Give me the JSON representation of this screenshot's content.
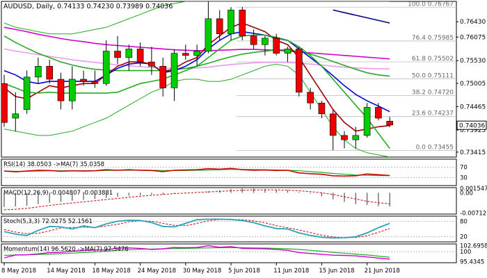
{
  "chart_data": {
    "type": "candlestick",
    "symbol": "AUDUSD",
    "timeframe": "Daily",
    "ohlc_header": {
      "open": "0.74133",
      "high": "0.74230",
      "low": "0.73989",
      "close": "0.74036"
    },
    "title": "AUDUSD, Daily, 0.74133 0.74230 0.73989 0.74036",
    "y_ticks": [
      "0.76430",
      "0.76075",
      "0.75530",
      "0.75005",
      "0.74465",
      "0.73925",
      "0.73415"
    ],
    "ylim": [
      0.733,
      0.769
    ],
    "current_price": "0.74036",
    "x_labels": [
      "8 May 2018",
      "14 May 2018",
      "18 May 2018",
      "24 May 2018",
      "30 May 2018",
      "5 Jun 2018",
      "11 Jun 2018",
      "15 Jun 2018",
      "21 Jun 2018"
    ],
    "x_label_bars": [
      0,
      4,
      8,
      12,
      16,
      20,
      24,
      28,
      32
    ],
    "candles": [
      {
        "o": 0.75,
        "h": 0.752,
        "l": 0.74,
        "c": 0.741
      },
      {
        "o": 0.742,
        "h": 0.748,
        "l": 0.739,
        "c": 0.743
      },
      {
        "o": 0.744,
        "h": 0.753,
        "l": 0.743,
        "c": 0.7515
      },
      {
        "o": 0.7515,
        "h": 0.756,
        "l": 0.75,
        "c": 0.754
      },
      {
        "o": 0.754,
        "h": 0.7555,
        "l": 0.75,
        "c": 0.751
      },
      {
        "o": 0.751,
        "h": 0.7525,
        "l": 0.744,
        "c": 0.746
      },
      {
        "o": 0.746,
        "h": 0.754,
        "l": 0.744,
        "c": 0.751
      },
      {
        "o": 0.751,
        "h": 0.753,
        "l": 0.7495,
        "c": 0.7505
      },
      {
        "o": 0.7505,
        "h": 0.753,
        "l": 0.749,
        "c": 0.75
      },
      {
        "o": 0.75,
        "h": 0.76,
        "l": 0.7495,
        "c": 0.7575
      },
      {
        "o": 0.7575,
        "h": 0.761,
        "l": 0.7545,
        "c": 0.756
      },
      {
        "o": 0.756,
        "h": 0.759,
        "l": 0.753,
        "c": 0.758
      },
      {
        "o": 0.758,
        "h": 0.7595,
        "l": 0.754,
        "c": 0.755
      },
      {
        "o": 0.755,
        "h": 0.7585,
        "l": 0.752,
        "c": 0.754
      },
      {
        "o": 0.754,
        "h": 0.756,
        "l": 0.747,
        "c": 0.749
      },
      {
        "o": 0.749,
        "h": 0.758,
        "l": 0.746,
        "c": 0.757
      },
      {
        "o": 0.757,
        "h": 0.759,
        "l": 0.7555,
        "c": 0.7565
      },
      {
        "o": 0.7565,
        "h": 0.759,
        "l": 0.754,
        "c": 0.7575
      },
      {
        "o": 0.7575,
        "h": 0.769,
        "l": 0.757,
        "c": 0.765
      },
      {
        "o": 0.765,
        "h": 0.767,
        "l": 0.76,
        "c": 0.7615
      },
      {
        "o": 0.7615,
        "h": 0.7677,
        "l": 0.76,
        "c": 0.767
      },
      {
        "o": 0.767,
        "h": 0.7677,
        "l": 0.76,
        "c": 0.761
      },
      {
        "o": 0.761,
        "h": 0.7625,
        "l": 0.758,
        "c": 0.759
      },
      {
        "o": 0.759,
        "h": 0.761,
        "l": 0.7565,
        "c": 0.7605
      },
      {
        "o": 0.7605,
        "h": 0.7615,
        "l": 0.7565,
        "c": 0.757
      },
      {
        "o": 0.757,
        "h": 0.7585,
        "l": 0.755,
        "c": 0.758
      },
      {
        "o": 0.758,
        "h": 0.7585,
        "l": 0.747,
        "c": 0.748
      },
      {
        "o": 0.748,
        "h": 0.749,
        "l": 0.744,
        "c": 0.7455
      },
      {
        "o": 0.7455,
        "h": 0.746,
        "l": 0.742,
        "c": 0.743
      },
      {
        "o": 0.743,
        "h": 0.744,
        "l": 0.7346,
        "c": 0.738
      },
      {
        "o": 0.738,
        "h": 0.739,
        "l": 0.735,
        "c": 0.737
      },
      {
        "o": 0.737,
        "h": 0.74,
        "l": 0.735,
        "c": 0.738
      },
      {
        "o": 0.738,
        "h": 0.7455,
        "l": 0.7375,
        "c": 0.7445
      },
      {
        "o": 0.7445,
        "h": 0.7455,
        "l": 0.7415,
        "c": 0.742
      },
      {
        "o": 0.7413,
        "h": 0.7423,
        "l": 0.7399,
        "c": 0.7404
      }
    ],
    "fib_levels": [
      {
        "label": "100.0 0.76767",
        "value": 0.76767
      },
      {
        "label": "76.4 0.75985",
        "value": 0.75985
      },
      {
        "label": "61.8 0.75502",
        "value": 0.75502
      },
      {
        "label": "50.0 0.75111",
        "value": 0.75111
      },
      {
        "label": "38.2 0.74720",
        "value": 0.7472
      },
      {
        "label": "23.6 0.74237",
        "value": 0.74237
      },
      {
        "label": "0.0 0.73455",
        "value": 0.73455
      }
    ],
    "overlays": [
      {
        "color": "#000080",
        "values": [
          0.767,
          0.7664,
          0.7658,
          0.7652,
          0.7646,
          0.764
        ]
      },
      {
        "color": "#cc00cc",
        "values": [
          0.763,
          0.7625,
          0.762,
          0.7614,
          0.7609,
          0.7604,
          0.76,
          0.7597,
          0.7593,
          0.759,
          0.7588,
          0.7586,
          0.7584,
          0.7582,
          0.758,
          0.7578,
          0.7577,
          0.7576,
          0.7576,
          0.7577,
          0.7578,
          0.7579,
          0.7579,
          0.7578,
          0.7577,
          0.7575,
          0.7573,
          0.7571,
          0.7569,
          0.7567,
          0.7565,
          0.7563,
          0.7561,
          0.7559,
          0.7557
        ]
      },
      {
        "color": "#ee99ee",
        "values": [
          0.758,
          0.7575,
          0.7571,
          0.7567,
          0.7563,
          0.7559,
          0.7555,
          0.7552,
          0.7549,
          0.7546,
          0.7543,
          0.7541,
          0.7539,
          0.7537,
          0.7536,
          0.7535,
          0.7535,
          0.7536,
          0.7538,
          0.7541,
          0.7544,
          0.7546,
          0.7548,
          0.7549,
          0.7549,
          0.7549,
          0.7547,
          0.7545,
          0.7543,
          0.754,
          0.7538,
          0.7536,
          0.7535,
          0.7534,
          0.7534
        ]
      },
      {
        "color": "#22aa22",
        "values": [
          0.761,
          0.7595,
          0.7582,
          0.757,
          0.756,
          0.755,
          0.7543,
          0.7537,
          0.7533,
          0.7531,
          0.753,
          0.753,
          0.753,
          0.753,
          0.753,
          0.7532,
          0.7535,
          0.754,
          0.7547,
          0.7555,
          0.7562,
          0.7568,
          0.7572,
          0.7575,
          0.7578,
          0.7578,
          0.7574,
          0.7568,
          0.756,
          0.7551,
          0.7542,
          0.7533,
          0.7525,
          0.752,
          0.7517
        ]
      },
      {
        "color": "#0000dd",
        "values": [
          0.753,
          0.752,
          0.7505,
          0.75,
          0.7505,
          0.7505,
          0.7505,
          0.7505,
          0.7505,
          0.752,
          0.7535,
          0.7545,
          0.7548,
          0.7545,
          0.7525,
          0.753,
          0.754,
          0.7555,
          0.758,
          0.76,
          0.7615,
          0.762,
          0.7616,
          0.7612,
          0.7605,
          0.76,
          0.758,
          0.756,
          0.754,
          0.7518,
          0.7495,
          0.7475,
          0.746,
          0.7448,
          0.7435
        ]
      },
      {
        "color": "#990000",
        "values": [
          0.749,
          0.747,
          0.7465,
          0.748,
          0.7495,
          0.749,
          0.7495,
          0.75,
          0.75,
          0.752,
          0.754,
          0.755,
          0.755,
          0.7545,
          0.7525,
          0.7535,
          0.755,
          0.756,
          0.759,
          0.761,
          0.763,
          0.764,
          0.763,
          0.762,
          0.76,
          0.759,
          0.756,
          0.752,
          0.748,
          0.744,
          0.741,
          0.739,
          0.7395,
          0.74,
          0.7403
        ]
      },
      {
        "color": "#22aa22",
        "values": [
          0.75,
          0.749,
          0.748,
          0.7478,
          0.748,
          0.7478,
          0.7478,
          0.7478,
          0.7478,
          0.7478,
          0.748,
          0.749,
          0.75,
          0.7505,
          0.751,
          0.752,
          0.753,
          0.754,
          0.756,
          0.758,
          0.76,
          0.761,
          0.7612,
          0.7612,
          0.7607,
          0.76,
          0.7585,
          0.7565,
          0.754,
          0.751,
          0.748,
          0.745,
          0.742,
          0.7385,
          0.735
        ]
      }
    ],
    "bb_upper": [
      0.764,
      0.763,
      0.7625,
      0.762,
      0.7615,
      0.7615,
      0.7615,
      0.762,
      0.7625,
      0.763,
      0.764,
      0.765,
      0.766,
      0.767,
      0.768,
      0.7685,
      0.769,
      0.769,
      0.769,
      0.769,
      0.769,
      0.769,
      0.769,
      0.769,
      0.769,
      0.769,
      0.769,
      0.769,
      0.769,
      0.769,
      0.769,
      0.769,
      0.769,
      0.769,
      0.769
    ],
    "bb_lower": [
      0.7395,
      0.739,
      0.7385,
      0.738,
      0.738,
      0.7385,
      0.739,
      0.74,
      0.741,
      0.742,
      0.7435,
      0.745,
      0.7465,
      0.748,
      0.749,
      0.7505,
      0.751,
      0.751,
      0.7505,
      0.7505,
      0.751,
      0.752,
      0.753,
      0.754,
      0.7545,
      0.754,
      0.752,
      0.748,
      0.744,
      0.74,
      0.737,
      0.735,
      0.734,
      0.7335,
      0.733
    ],
    "indicators": {
      "rsi": {
        "label": "RSI(14) 38.0503 ->MA(7) 35.0358",
        "ticks": [
          "70",
          "30"
        ],
        "rsi": [
          55,
          52,
          55,
          58,
          57,
          54,
          56,
          55,
          56,
          60,
          58,
          60,
          58,
          57,
          53,
          58,
          59,
          60,
          64,
          62,
          65,
          60,
          58,
          59,
          57,
          58,
          48,
          45,
          43,
          37,
          36,
          37,
          44,
          41,
          38
        ],
        "ma": [
          55,
          54,
          54,
          55,
          56,
          56,
          56,
          56,
          56,
          57,
          58,
          58,
          59,
          58,
          57,
          57,
          57,
          58,
          59,
          60,
          61,
          61,
          61,
          60,
          59,
          58,
          56,
          53,
          50,
          46,
          43,
          40,
          39,
          38,
          38
        ]
      },
      "macd": {
        "label": "MACD(12,26,9) -0.004807 -0.003881",
        "ticks": [
          "0.001547",
          "0.00",
          "-0.00712"
        ],
        "hist": [
          -0.005,
          -0.0048,
          -0.0046,
          -0.004,
          -0.0035,
          -0.0032,
          -0.0028,
          -0.0025,
          -0.0022,
          -0.0018,
          -0.0014,
          -0.001,
          -0.0008,
          -0.0006,
          -0.0006,
          -0.0004,
          -0.0002,
          0.0,
          0.0005,
          0.0009,
          0.0013,
          0.0015,
          0.0015,
          0.0013,
          0.0011,
          0.0009,
          0.0003,
          -0.0003,
          -0.0013,
          -0.0023,
          -0.0032,
          -0.004,
          -0.0043,
          -0.0047,
          -0.0048
        ],
        "signal": [
          -0.006,
          -0.0058,
          -0.0055,
          -0.005,
          -0.0045,
          -0.004,
          -0.0036,
          -0.0032,
          -0.0028,
          -0.0024,
          -0.002,
          -0.0016,
          -0.0012,
          -0.0009,
          -0.0006,
          -0.0003,
          -0.0001,
          0.0001,
          0.0003,
          0.0005,
          0.0007,
          0.0009,
          0.001,
          0.001,
          0.001,
          0.0009,
          0.0007,
          0.0004,
          0.0,
          -0.0006,
          -0.0014,
          -0.0022,
          -0.003,
          -0.0035,
          -0.0039
        ]
      },
      "stoch": {
        "label": "Stoch(5,3,3) 72.0275 52.1561",
        "ticks": [
          "80",
          "20"
        ],
        "k": [
          40,
          30,
          25,
          45,
          60,
          58,
          50,
          62,
          55,
          70,
          80,
          84,
          83,
          75,
          60,
          58,
          72,
          86,
          88,
          88,
          87,
          83,
          75,
          62,
          52,
          50,
          35,
          25,
          18,
          15,
          16,
          20,
          35,
          55,
          72
        ],
        "d": [
          48,
          38,
          32,
          33,
          43,
          54,
          56,
          57,
          56,
          62,
          68,
          78,
          82,
          80,
          72,
          64,
          63,
          72,
          82,
          87,
          87,
          86,
          82,
          74,
          63,
          55,
          46,
          36,
          26,
          19,
          16,
          17,
          24,
          37,
          52
        ]
      },
      "momentum": {
        "label": "Momentum(14) 96.5620 ->MA(7) 97.5476",
        "ticks": [
          "102.6958",
          "100",
          "95.4345"
        ],
        "m": [
          97.2,
          98.5,
          98.6,
          99.0,
          99.6,
          99.7,
          100.2,
          100.5,
          100.8,
          100.8,
          101.6,
          101.7,
          101.5,
          101.0,
          101.3,
          101.9,
          101.8,
          101.9,
          102.7,
          102.0,
          102.3,
          101.5,
          101.4,
          101.3,
          101.0,
          100.6,
          99.6,
          99.2,
          98.8,
          98.4,
          98.3,
          98.1,
          97.6,
          97.1,
          96.6
        ],
        "ma": [
          98.3,
          98.5,
          98.6,
          98.7,
          98.9,
          99.1,
          99.3,
          99.6,
          99.9,
          100.2,
          100.6,
          100.9,
          101.1,
          101.2,
          101.3,
          101.4,
          101.5,
          101.6,
          101.7,
          101.8,
          101.8,
          101.8,
          101.7,
          101.6,
          101.5,
          101.3,
          101.0,
          100.6,
          100.2,
          99.7,
          99.3,
          98.9,
          98.5,
          98.0,
          97.5
        ]
      }
    }
  }
}
